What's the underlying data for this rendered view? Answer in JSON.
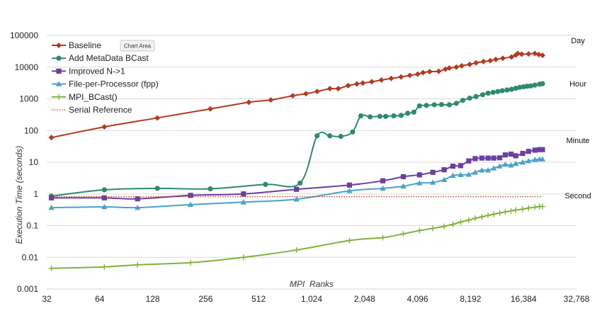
{
  "tooltip": "Chart Area",
  "chart_data": {
    "type": "line",
    "xlabel": "MPI  Ranks",
    "ylabel": "Execution Time (seconds)",
    "x_scale": "log2",
    "y_scale": "log10",
    "xlim": [
      32,
      32768
    ],
    "ylim": [
      0.001,
      100000
    ],
    "x_ticks": [
      32,
      64,
      128,
      256,
      512,
      1024,
      2048,
      4096,
      8192,
      16384,
      32768
    ],
    "x_tick_labels": [
      "32",
      "64",
      "128",
      "256",
      "512",
      "1,024",
      "2,048",
      "4,096",
      "8,192",
      "16,384",
      "32,768"
    ],
    "y_ticks": [
      0.001,
      0.01,
      0.1,
      1,
      10,
      100,
      1000,
      10000,
      100000
    ],
    "y_tick_labels": [
      "0.001",
      "0.01",
      "0.1",
      "1",
      "10",
      "100",
      "1000",
      "10000",
      "100000"
    ],
    "grid": "horizontal major",
    "legend_position": "top-left",
    "reference_labels": [
      {
        "text": "Day",
        "value": 86400
      },
      {
        "text": "Hour",
        "value": 3600
      },
      {
        "text": "Minute",
        "value": 60
      },
      {
        "text": "Second",
        "value": 1
      }
    ],
    "series": [
      {
        "name": "Baseline",
        "color": "#b23a1f",
        "marker": "diamond",
        "points": [
          [
            34,
            60
          ],
          [
            68,
            130
          ],
          [
            136,
            250
          ],
          [
            272,
            480
          ],
          [
            450,
            780
          ],
          [
            600,
            920
          ],
          [
            800,
            1250
          ],
          [
            950,
            1450
          ],
          [
            1100,
            1700
          ],
          [
            1300,
            2100
          ],
          [
            1450,
            2100
          ],
          [
            1650,
            2600
          ],
          [
            1850,
            2950
          ],
          [
            2000,
            3150
          ],
          [
            2250,
            3450
          ],
          [
            2550,
            3900
          ],
          [
            2900,
            4400
          ],
          [
            3300,
            4900
          ],
          [
            3700,
            5500
          ],
          [
            4100,
            6000
          ],
          [
            4400,
            6700
          ],
          [
            4800,
            7200
          ],
          [
            5400,
            7400
          ],
          [
            5900,
            8600
          ],
          [
            6200,
            9400
          ],
          [
            6800,
            10000
          ],
          [
            7300,
            11000
          ],
          [
            8100,
            12200
          ],
          [
            8800,
            13600
          ],
          [
            9700,
            15000
          ],
          [
            10600,
            16000
          ],
          [
            11400,
            17500
          ],
          [
            12500,
            19000
          ],
          [
            14000,
            21000
          ],
          [
            14800,
            24000
          ],
          [
            15200,
            27000
          ],
          [
            16000,
            25500
          ],
          [
            17500,
            26000
          ],
          [
            19000,
            27000
          ],
          [
            20000,
            25000
          ],
          [
            21000,
            23500
          ]
        ]
      },
      {
        "name": "Add MetaData BCast",
        "color": "#2e8b6a",
        "marker": "circle",
        "points": [
          [
            34,
            0.85
          ],
          [
            68,
            1.35
          ],
          [
            136,
            1.5
          ],
          [
            272,
            1.45
          ],
          [
            560,
            2.0
          ],
          [
            880,
            2.2
          ],
          [
            1100,
            68
          ],
          [
            1300,
            68
          ],
          [
            1500,
            65
          ],
          [
            1750,
            90
          ],
          [
            1950,
            290
          ],
          [
            2200,
            270
          ],
          [
            2500,
            280
          ],
          [
            2700,
            280
          ],
          [
            3000,
            290
          ],
          [
            3300,
            300
          ],
          [
            3600,
            350
          ],
          [
            3900,
            380
          ],
          [
            4200,
            600
          ],
          [
            4600,
            620
          ],
          [
            5100,
            650
          ],
          [
            5600,
            660
          ],
          [
            6200,
            650
          ],
          [
            6800,
            720
          ],
          [
            7400,
            900
          ],
          [
            8100,
            1050
          ],
          [
            8800,
            1180
          ],
          [
            9600,
            1350
          ],
          [
            10300,
            1500
          ],
          [
            11000,
            1600
          ],
          [
            11700,
            1700
          ],
          [
            12400,
            1800
          ],
          [
            13200,
            1900
          ],
          [
            14000,
            2000
          ],
          [
            14800,
            2150
          ],
          [
            15600,
            2300
          ],
          [
            16400,
            2400
          ],
          [
            17200,
            2500
          ],
          [
            18000,
            2550
          ],
          [
            19000,
            2700
          ],
          [
            20200,
            2900
          ],
          [
            21000,
            3000
          ]
        ]
      },
      {
        "name": "Improved N->1",
        "color": "#6b3fa0",
        "marker": "square",
        "points": [
          [
            34,
            0.75
          ],
          [
            68,
            0.75
          ],
          [
            105,
            0.7
          ],
          [
            210,
            0.9
          ],
          [
            420,
            1.0
          ],
          [
            840,
            1.4
          ],
          [
            1680,
            1.9
          ],
          [
            2600,
            2.6
          ],
          [
            3400,
            3.5
          ],
          [
            4200,
            4.0
          ],
          [
            5000,
            4.8
          ],
          [
            5800,
            5.8
          ],
          [
            6500,
            7.5
          ],
          [
            7200,
            7.8
          ],
          [
            8000,
            11
          ],
          [
            8700,
            13
          ],
          [
            9500,
            13.5
          ],
          [
            10300,
            13.5
          ],
          [
            11100,
            13.5
          ],
          [
            12000,
            13.8
          ],
          [
            12900,
            17
          ],
          [
            13900,
            18
          ],
          [
            14800,
            16
          ],
          [
            16200,
            19
          ],
          [
            17500,
            22
          ],
          [
            19000,
            24
          ],
          [
            20200,
            25
          ],
          [
            21000,
            25
          ]
        ]
      },
      {
        "name": "File-per-Processor (fpp)",
        "color": "#4aa3c8",
        "marker": "triangle",
        "points": [
          [
            34,
            0.37
          ],
          [
            68,
            0.39
          ],
          [
            105,
            0.37
          ],
          [
            210,
            0.46
          ],
          [
            420,
            0.55
          ],
          [
            840,
            0.68
          ],
          [
            1680,
            1.25
          ],
          [
            2600,
            1.5
          ],
          [
            3400,
            1.75
          ],
          [
            4200,
            2.2
          ],
          [
            5000,
            2.3
          ],
          [
            5800,
            2.8
          ],
          [
            6500,
            3.8
          ],
          [
            7200,
            4.0
          ],
          [
            8000,
            4.1
          ],
          [
            8700,
            4.8
          ],
          [
            9500,
            5.6
          ],
          [
            10300,
            5.6
          ],
          [
            11100,
            6.5
          ],
          [
            12000,
            7.5
          ],
          [
            12900,
            8.5
          ],
          [
            13900,
            8.0
          ],
          [
            14800,
            9.0
          ],
          [
            16200,
            10.0
          ],
          [
            17500,
            11.0
          ],
          [
            19000,
            12.0
          ],
          [
            20200,
            12.5
          ],
          [
            21000,
            12.5
          ]
        ]
      },
      {
        "name": "MPI_BCast()",
        "color": "#7fb33a",
        "marker": "plus",
        "points": [
          [
            34,
            0.0045
          ],
          [
            68,
            0.005
          ],
          [
            105,
            0.0058
          ],
          [
            210,
            0.0068
          ],
          [
            420,
            0.01
          ],
          [
            840,
            0.017
          ],
          [
            1680,
            0.034
          ],
          [
            2600,
            0.042
          ],
          [
            3400,
            0.055
          ],
          [
            4200,
            0.07
          ],
          [
            5000,
            0.082
          ],
          [
            5800,
            0.095
          ],
          [
            6500,
            0.11
          ],
          [
            7200,
            0.13
          ],
          [
            8000,
            0.15
          ],
          [
            8700,
            0.17
          ],
          [
            9500,
            0.19
          ],
          [
            10300,
            0.21
          ],
          [
            11100,
            0.23
          ],
          [
            12000,
            0.25
          ],
          [
            12900,
            0.27
          ],
          [
            13900,
            0.29
          ],
          [
            14800,
            0.31
          ],
          [
            16200,
            0.33
          ],
          [
            17500,
            0.36
          ],
          [
            19000,
            0.38
          ],
          [
            20200,
            0.4
          ],
          [
            21000,
            0.4
          ]
        ]
      },
      {
        "name": "Serial Reference",
        "color": "#b23a1f",
        "marker": "dotted-line",
        "points": [
          [
            34,
            0.82
          ],
          [
            21000,
            0.82
          ]
        ]
      }
    ]
  }
}
